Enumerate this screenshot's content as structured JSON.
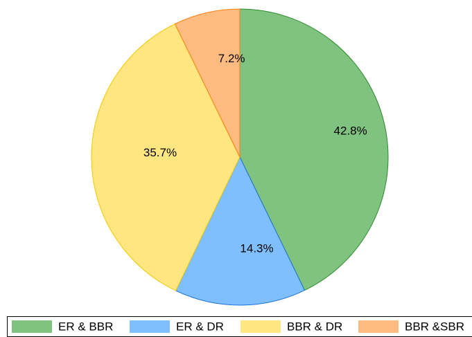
{
  "chart_data": {
    "type": "pie",
    "categories": [
      "ER & BBR",
      "ER & DR",
      "BBR & DR",
      "BBR &SBR"
    ],
    "values": [
      42.8,
      14.3,
      35.7,
      7.2
    ],
    "value_labels": [
      "42.8%",
      "14.3%",
      "35.7%",
      "7.2%"
    ],
    "colors": [
      "#80c280",
      "#80bfff",
      "#ffe680",
      "#ffbb80"
    ],
    "edge_colors": [
      "#2a8a2a",
      "#1a73d9",
      "#f0c800",
      "#ff7f0e"
    ],
    "legend": "bottom"
  }
}
